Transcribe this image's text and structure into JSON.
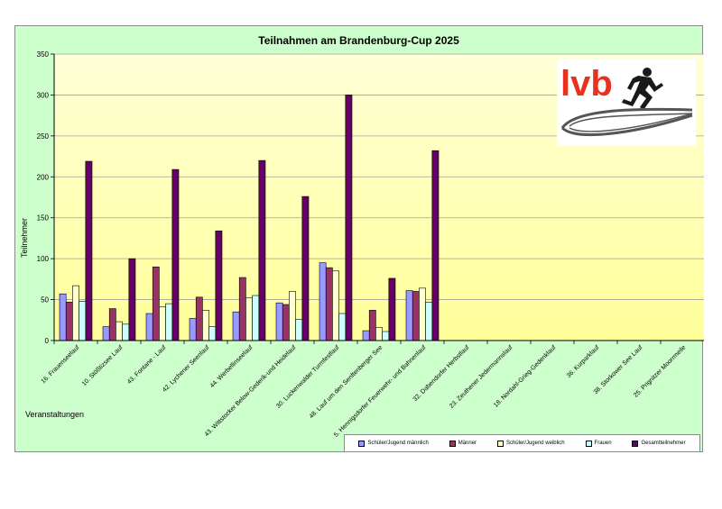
{
  "chart_data": {
    "type": "bar",
    "title": "Teilnahmen am Brandenburg-Cup 2025",
    "xlabel": "Veranstaltungen",
    "ylabel": "Teilnehmer",
    "ylim": [
      0,
      350
    ],
    "yticks": [
      0,
      50,
      100,
      150,
      200,
      250,
      300,
      350
    ],
    "grid": true,
    "legend_position": "bottom-right",
    "categories": [
      "16. Frauenseelauf",
      "10. Stößtizsee Lauf",
      "43. Fontane - Lauf",
      "42. Lychener Seenlauf",
      "44. Werbellinseelauf",
      "43. Wittstocker Below-Gederik-und Heidelauf",
      "30. Luckenwalder Turmfestlauf",
      "48. Lauf um den Senftenberger See",
      "5. Hennigsdorfer Feuerwehr- und Bahnenlauf",
      "32. Dabendorfer Herbstlauf",
      "23. Zeuthener Jedermannslauf",
      "18. Nordahl-Grieg-Gedenklauf",
      "36. Kurparklauf",
      "38. Storkower See Lauf",
      "25. Prignitzer Moorrmeile"
    ],
    "series": [
      {
        "name": "Schüler/Jugend männlich",
        "color": "#9999ff",
        "values": [
          57,
          17,
          33,
          27,
          35,
          46,
          95,
          12,
          61,
          null,
          null,
          null,
          null,
          null,
          null
        ]
      },
      {
        "name": "Männer",
        "color": "#993366",
        "values": [
          47,
          39,
          90,
          53,
          77,
          44,
          89,
          37,
          60,
          null,
          null,
          null,
          null,
          null,
          null
        ]
      },
      {
        "name": "Schüler/Jugend weiblich",
        "color": "#ffffcc",
        "values": [
          67,
          23,
          41,
          37,
          52,
          60,
          85,
          16,
          64,
          null,
          null,
          null,
          null,
          null,
          null
        ]
      },
      {
        "name": "Frauen",
        "color": "#ccffff",
        "values": [
          48,
          20,
          45,
          17,
          55,
          26,
          33,
          11,
          47,
          null,
          null,
          null,
          null,
          null,
          null
        ]
      },
      {
        "name": "Gesamtteilnehmer",
        "color": "#660066",
        "values": [
          219,
          100,
          209,
          134,
          220,
          176,
          300,
          76,
          232,
          null,
          null,
          null,
          null,
          null,
          null
        ]
      }
    ]
  },
  "logo": {
    "text": "lvb",
    "text_color": "#e8321e",
    "figure_icon": "runner-icon"
  },
  "colors": {
    "chart_area": "#ccffcc",
    "plot_top": "#ffffcc",
    "plot_bottom": "#ffff99",
    "grid": "#a0a0a0"
  }
}
